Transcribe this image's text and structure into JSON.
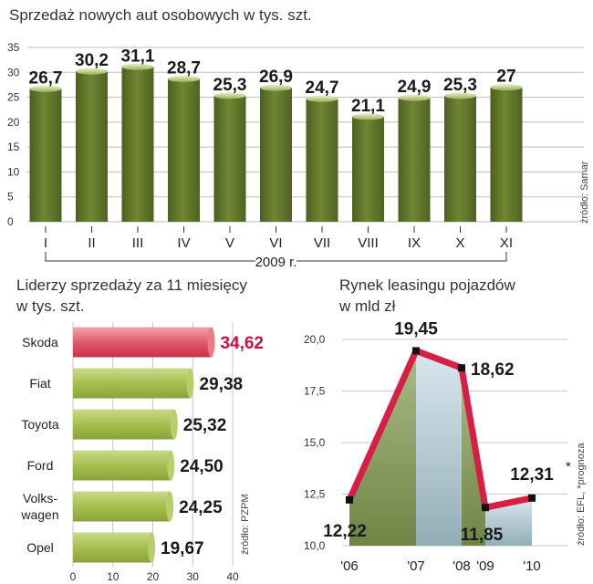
{
  "chart_data": [
    {
      "type": "bar",
      "title": "Sprzedaż nowych aut osobowych w tys. szt.",
      "categories": [
        "I",
        "II",
        "III",
        "IV",
        "V",
        "VI",
        "VII",
        "VIII",
        "IX",
        "X",
        "XI"
      ],
      "values": [
        26.7,
        30.2,
        31.1,
        28.7,
        25.3,
        26.9,
        24.7,
        21.1,
        24.9,
        25.3,
        27
      ],
      "value_labels": [
        "26,7",
        "30,2",
        "31,1",
        "28,7",
        "25,3",
        "26,9",
        "24,7",
        "21,1",
        "24,9",
        "25,3",
        "27"
      ],
      "yticks": [
        "0",
        "5",
        "10",
        "15",
        "20",
        "25",
        "30",
        "35"
      ],
      "ylim": [
        0,
        35
      ],
      "xlabel": "2009 r.",
      "source": "źródło: Samar",
      "color": "#5c7128"
    },
    {
      "type": "bar",
      "orientation": "horizontal",
      "title_lines": [
        "Liderzy sprzedaży za 11 miesięcy",
        "w tys. szt."
      ],
      "categories": [
        "Skoda",
        "Fiat",
        "Toyota",
        "Ford",
        "Volks- wagen",
        "Opel"
      ],
      "category_lines": [
        [
          "Skoda"
        ],
        [
          "Fiat"
        ],
        [
          "Toyota"
        ],
        [
          "Ford"
        ],
        [
          "Volks-",
          "wagen"
        ],
        [
          "Opel"
        ]
      ],
      "values": [
        34.62,
        29.38,
        25.32,
        24.5,
        24.25,
        19.67
      ],
      "value_labels": [
        "34,62",
        "29,38",
        "25,32",
        "24,50",
        "24,25",
        "19,67"
      ],
      "highlight_index": 0,
      "xticks": [
        "0",
        "10",
        "20",
        "30",
        "40"
      ],
      "xlim": [
        0,
        40
      ],
      "source": "źródło: PZPM",
      "color": "#a9c24b",
      "highlight_color": "#d9304d"
    },
    {
      "type": "line",
      "title_lines": [
        "Rynek leasingu pojazdów",
        "w mld zł"
      ],
      "categories": [
        "'06",
        "'07",
        "'08",
        "'09",
        "'10"
      ],
      "values": [
        12.22,
        19.45,
        18.62,
        11.85,
        12.31
      ],
      "value_labels": [
        "12,22",
        "19,45",
        "18,62",
        "11,85",
        "12,31"
      ],
      "forecast_mark": "*",
      "yticks": [
        "10,0",
        "12,5",
        "15,0",
        "17,5",
        "20,0"
      ],
      "ylim": [
        10,
        20
      ],
      "source": "źródło: EFL, *prognoza",
      "color": "#d81e45"
    }
  ]
}
